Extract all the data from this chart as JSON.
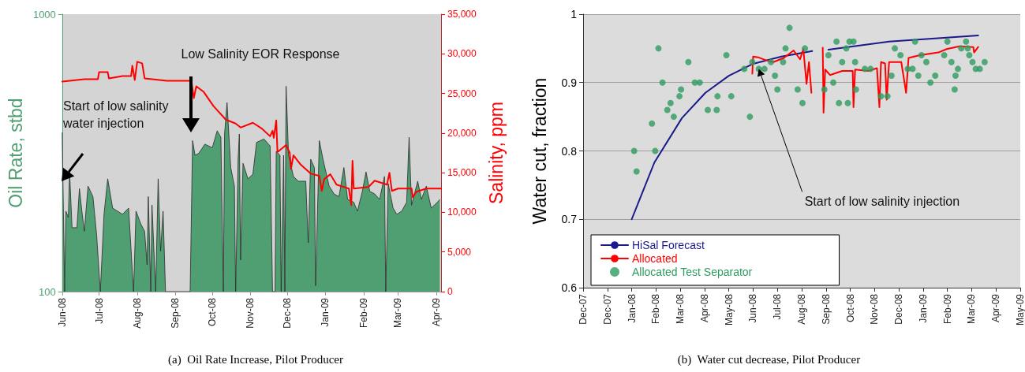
{
  "chart_data": [
    {
      "type": "area",
      "title": "(a)  Oil Rate Increase, Pilot Producer",
      "ylabel": "Oil Rate, stbd",
      "y2label": "Salinity, ppm",
      "log": "y",
      "xlim": [
        "2008-06-01",
        "2009-04-05"
      ],
      "xticks": [
        {
          "value": "2008-06-01",
          "label": "Jun-08"
        },
        {
          "value": "2008-07-01",
          "label": "Jul-08"
        },
        {
          "value": "2008-08-01",
          "label": "Aug-08"
        },
        {
          "value": "2008-09-01",
          "label": "Sep-08"
        },
        {
          "value": "2008-10-01",
          "label": "Oct-08"
        },
        {
          "value": "2008-11-01",
          "label": "Nov-08"
        },
        {
          "value": "2008-12-01",
          "label": "Dec-08"
        },
        {
          "value": "2009-01-01",
          "label": "Jan-09"
        },
        {
          "value": "2009-02-01",
          "label": "Feb-09"
        },
        {
          "value": "2009-03-01",
          "label": "Mar-09"
        },
        {
          "value": "2009-04-01",
          "label": "Apr-09"
        }
      ],
      "ylim": [
        100,
        1000
      ],
      "yticks": [
        100,
        1000
      ],
      "y2lim": [
        0,
        35000
      ],
      "y2ticks": [
        0,
        {
          "value": 5000,
          "label": "5,000"
        },
        {
          "value": 10000,
          "label": "10,000"
        },
        {
          "value": 15000,
          "label": "15,000"
        },
        {
          "value": 20000,
          "label": "20,000"
        },
        {
          "value": 25000,
          "label": "25,000"
        },
        {
          "value": 30000,
          "label": "30,000"
        },
        {
          "value": 35000,
          "label": "35,000"
        }
      ],
      "marker": "none",
      "series": [
        {
          "color": "#4f9f72",
          "x": [
            "2008-06-01",
            "2008-06-03",
            "2008-06-04",
            "2008-06-06",
            "2008-06-07",
            "2008-06-09",
            "2008-06-13",
            "2008-06-15",
            "2008-06-17",
            "2008-06-19",
            "2008-06-22",
            "2008-06-26",
            "2008-06-29",
            "2008-07-02",
            "2008-07-05",
            "2008-07-08",
            "2008-07-12",
            "2008-07-16",
            "2008-07-20",
            "2008-07-25",
            "2008-07-29",
            "2008-07-31",
            "2008-08-04",
            "2008-08-07",
            "2008-08-09",
            "2008-08-10",
            "2008-08-12",
            "2008-08-13",
            "2008-08-16",
            "2008-08-18",
            "2008-08-20",
            "2008-08-22",
            "2008-08-24",
            "2008-09-13",
            "2008-09-15",
            "2008-09-17",
            "2008-09-20",
            "2008-09-25",
            "2008-10-01",
            "2008-10-05",
            "2008-10-08",
            "2008-10-10",
            "2008-10-11",
            "2008-10-13",
            "2008-10-16",
            "2008-10-19",
            "2008-10-20",
            "2008-10-22",
            "2008-10-23",
            "2008-10-24",
            "2008-10-26",
            "2008-10-30",
            "2008-11-03",
            "2008-11-06",
            "2008-11-12",
            "2008-11-17",
            "2008-11-19",
            "2008-11-21",
            "2008-11-22",
            "2008-11-25",
            "2008-11-26",
            "2008-11-28",
            "2008-11-29",
            "2008-11-30",
            "2008-12-02",
            "2008-12-06",
            "2008-12-10",
            "2008-12-16",
            "2008-12-18",
            "2008-12-20",
            "2008-12-23",
            "2008-12-24",
            "2008-12-27",
            "2008-12-30",
            "2009-01-04",
            "2009-01-08",
            "2009-01-12",
            "2009-01-16",
            "2009-01-19",
            "2009-01-24",
            "2009-01-27",
            "2009-01-31",
            "2009-02-03",
            "2009-02-06",
            "2009-02-10",
            "2009-02-14",
            "2009-02-18",
            "2009-02-19",
            "2009-02-21",
            "2009-02-25",
            "2009-02-28",
            "2009-03-04",
            "2009-03-08",
            "2009-03-10",
            "2009-03-12",
            "2009-03-17",
            "2009-03-20",
            "2009-03-24",
            "2009-03-28",
            "2009-04-02",
            "2009-04-04"
          ],
          "values": [
            375,
            100,
            195,
            185,
            270,
            170,
            170,
            235,
            195,
            165,
            240,
            220,
            160,
            100,
            190,
            255,
            200,
            195,
            190,
            200,
            100,
            195,
            175,
            165,
            125,
            220,
            100,
            205,
            100,
            255,
            140,
            195,
            100,
            100,
            350,
            310,
            315,
            340,
            330,
            380,
            360,
            100,
            370,
            480,
            280,
            240,
            100,
            300,
            370,
            130,
            290,
            255,
            265,
            345,
            355,
            335,
            100,
            100,
            320,
            310,
            100,
            310,
            100,
            550,
            310,
            260,
            250,
            250,
            150,
            300,
            280,
            105,
            350,
            300,
            240,
            225,
            220,
            280,
            215,
            210,
            195,
            230,
            270,
            230,
            225,
            215,
            260,
            100,
            245,
            200,
            190,
            195,
            210,
            360,
            205,
            250,
            215,
            240,
            200,
            210,
            215
          ]
        },
        {
          "type": "line",
          "axis": "y2",
          "color": "#ff0000",
          "x": [
            "2008-06-01",
            "2008-06-19",
            "2008-06-30",
            "2008-07-01",
            "2008-07-08",
            "2008-07-09",
            "2008-07-20",
            "2008-07-27",
            "2008-07-28",
            "2008-07-30",
            "2008-08-01",
            "2008-08-05",
            "2008-08-07",
            "2008-08-25",
            "2008-09-14",
            "2008-09-16",
            "2008-09-18",
            "2008-09-24",
            "2008-10-02",
            "2008-10-12",
            "2008-10-20",
            "2008-10-24",
            "2008-11-03",
            "2008-11-10",
            "2008-11-17",
            "2008-11-19",
            "2008-11-20",
            "2008-11-22",
            "2008-11-23",
            "2008-11-30",
            "2008-12-03",
            "2008-12-04",
            "2008-12-06",
            "2008-12-12",
            "2008-12-20",
            "2008-12-27",
            "2008-12-29",
            "2008-12-31",
            "2009-01-05",
            "2009-01-10",
            "2009-01-20",
            "2009-01-22",
            "2009-01-23",
            "2009-01-24",
            "2009-02-05",
            "2009-02-10",
            "2009-02-20",
            "2009-02-22",
            "2009-02-24",
            "2009-03-01",
            "2009-03-12",
            "2009-03-13",
            "2009-03-16",
            "2009-03-24",
            "2009-04-05"
          ],
          "values": [
            26500,
            26800,
            26800,
            27700,
            27700,
            26900,
            27200,
            27200,
            28500,
            26700,
            29000,
            28800,
            26900,
            26600,
            26600,
            24400,
            25900,
            25200,
            23400,
            21700,
            21200,
            20700,
            21300,
            20600,
            19600,
            20300,
            19400,
            21600,
            17600,
            18500,
            17500,
            15500,
            17200,
            16000,
            14900,
            14600,
            12700,
            14200,
            14800,
            13500,
            13000,
            10900,
            16500,
            13000,
            13200,
            14000,
            13500,
            15000,
            12700,
            13000,
            13000,
            11900,
            12600,
            13000,
            13000
          ]
        }
      ],
      "annotations": [
        "Start of low salinity water injection",
        "Low Salinity EOR Response"
      ]
    },
    {
      "type": "line",
      "title": "(b)  Water cut decrease, Pilot Producer",
      "ylabel": "Water cut, fraction",
      "xlim": [
        "2007-12-01",
        "2009-05-24"
      ],
      "xticks": [
        {
          "value": "2007-12-01",
          "label": "Dec-07"
        },
        {
          "value": "2007-12-31",
          "label": "Dec-07"
        },
        {
          "value": "2008-01-30",
          "label": "Jan-08"
        },
        {
          "value": "2008-02-29",
          "label": "Feb-08"
        },
        {
          "value": "2008-03-30",
          "label": "Mar-08"
        },
        {
          "value": "2008-04-29",
          "label": "Apr-08"
        },
        {
          "value": "2008-05-29",
          "label": "May-08"
        },
        {
          "value": "2008-06-28",
          "label": "Jun-08"
        },
        {
          "value": "2008-07-28",
          "label": "Jul-08"
        },
        {
          "value": "2008-08-27",
          "label": "Aug-08"
        },
        {
          "value": "2008-09-26",
          "label": "Sep-08"
        },
        {
          "value": "2008-10-26",
          "label": "Oct-08"
        },
        {
          "value": "2008-11-25",
          "label": "Nov-08"
        },
        {
          "value": "2008-12-25",
          "label": "Dec-08"
        },
        {
          "value": "2009-01-24",
          "label": "Jan-09"
        },
        {
          "value": "2009-02-23",
          "label": "Feb-09"
        },
        {
          "value": "2009-03-25",
          "label": "Mar-09"
        },
        {
          "value": "2009-04-24",
          "label": "Apr-09"
        },
        {
          "value": "2009-05-24",
          "label": "May-09"
        }
      ],
      "ylim": [
        0.6,
        1
      ],
      "yticks": [
        0.6,
        0.7,
        0.8,
        0.9,
        1
      ],
      "grid": "y",
      "legend": "bottom left",
      "marker": "none",
      "series": [
        {
          "name": "HiSal Forecast",
          "color": "#1a1a8c",
          "x": [
            "2008-01-30",
            "2008-02-27",
            "2008-04-01",
            "2008-04-30",
            "2008-05-29",
            "2008-06-27",
            "2008-08-02",
            "2008-09-09",
            "2008-09-20",
            "2008-09-29",
            "2008-12-13",
            "2009-04-02"
          ],
          "values": [
            0.7,
            0.783,
            0.848,
            0.885,
            0.91,
            0.927,
            0.938,
            0.946,
            null,
            0.948,
            0.96,
            0.969
          ]
        },
        {
          "name": "Allocated",
          "color": "#ff0000",
          "x": [
            "2008-06-27",
            "2008-06-28",
            "2008-07-04",
            "2008-07-13",
            "2008-07-23",
            "2008-08-05",
            "2008-08-17",
            "2008-08-25",
            "2008-08-29",
            "2008-09-02",
            "2008-09-05",
            "2008-09-08",
            "2008-09-15",
            "2008-09-22",
            "2008-09-23",
            "2008-09-25",
            "2008-10-01",
            "2008-10-16",
            "2008-10-29",
            "2008-10-30",
            "2008-11-01",
            "2008-11-17",
            "2008-11-28",
            "2008-12-01",
            "2008-12-03",
            "2008-12-08",
            "2008-12-10",
            "2008-12-13",
            "2008-12-28",
            "2009-01-03",
            "2009-01-06",
            "2009-01-20",
            "2009-02-12",
            "2009-02-22",
            "2009-03-10",
            "2009-03-27",
            "2009-03-28",
            "2009-04-02"
          ],
          "values": [
            0.913,
            0.938,
            0.937,
            0.933,
            0.93,
            0.936,
            0.947,
            0.934,
            0.949,
            0.898,
            0.93,
            0.885,
            null,
            0.951,
            0.856,
            0.919,
            0.911,
            0.917,
            0.917,
            0.864,
            0.919,
            0.917,
            0.921,
            0.864,
            0.93,
            0.928,
            0.875,
            0.93,
            0.93,
            0.885,
            0.936,
            0.94,
            0.944,
            0.949,
            0.953,
            0.952,
            0.944,
            0.952
          ]
        },
        {
          "name": "Allocated Test Separator",
          "type": "scatter",
          "marker": "circle",
          "color": "#2e9b5f",
          "x": [
            "2008-02-02",
            "2008-02-05",
            "2008-02-24",
            "2008-02-28",
            "2008-03-03",
            "2008-03-08",
            "2008-03-14",
            "2008-03-18",
            "2008-03-22",
            "2008-03-29",
            "2008-03-31",
            "2008-04-09",
            "2008-04-17",
            "2008-04-23",
            "2008-05-03",
            "2008-05-14",
            "2008-05-15",
            "2008-05-26",
            "2008-06-01",
            "2008-06-17",
            "2008-06-24",
            "2008-06-27",
            "2008-07-05",
            "2008-07-12",
            "2008-07-20",
            "2008-07-25",
            "2008-07-28",
            "2008-08-04",
            "2008-08-07",
            "2008-08-12",
            "2008-08-22",
            "2008-08-28",
            "2008-08-31",
            "2008-09-24",
            "2008-09-29",
            "2008-10-05",
            "2008-10-09",
            "2008-10-12",
            "2008-10-16",
            "2008-10-21",
            "2008-10-23",
            "2008-10-25",
            "2008-10-30",
            "2008-11-01",
            "2008-11-02",
            "2008-11-13",
            "2008-11-20",
            "2008-12-03",
            "2008-12-11",
            "2008-12-16",
            "2008-12-20",
            "2008-12-27",
            "2009-01-05",
            "2009-01-11",
            "2009-01-14",
            "2009-01-18",
            "2009-01-22",
            "2009-01-28",
            "2009-02-02",
            "2009-02-08",
            "2009-02-19",
            "2009-02-23",
            "2009-02-28",
            "2009-03-04",
            "2009-03-05",
            "2009-03-08",
            "2009-03-12",
            "2009-03-18",
            "2009-03-20",
            "2009-03-22",
            "2009-03-26",
            "2009-03-30",
            "2009-04-04",
            "2009-04-10"
          ],
          "values": [
            0.8,
            0.77,
            0.84,
            0.8,
            0.95,
            0.9,
            0.86,
            0.87,
            0.85,
            0.88,
            0.89,
            0.93,
            0.9,
            0.9,
            0.86,
            0.86,
            0.88,
            0.94,
            0.88,
            0.92,
            0.85,
            0.93,
            0.92,
            0.92,
            0.93,
            0.91,
            0.89,
            0.93,
            0.95,
            0.98,
            0.89,
            0.87,
            0.95,
            0.89,
            0.94,
            0.9,
            0.96,
            0.87,
            0.93,
            0.95,
            0.87,
            0.96,
            0.96,
            0.93,
            0.89,
            0.92,
            0.92,
            0.88,
            0.88,
            0.91,
            0.95,
            0.94,
            0.92,
            0.92,
            0.96,
            0.91,
            0.94,
            0.93,
            0.9,
            0.91,
            0.94,
            0.96,
            0.93,
            0.89,
            0.91,
            0.92,
            0.95,
            0.96,
            0.95,
            0.94,
            0.93,
            0.92,
            0.92,
            0.93
          ]
        }
      ],
      "annotations": [
        {
          "text": "Start of low salinity injection",
          "x": "2008-07-05",
          "y": 0.92
        }
      ]
    }
  ]
}
